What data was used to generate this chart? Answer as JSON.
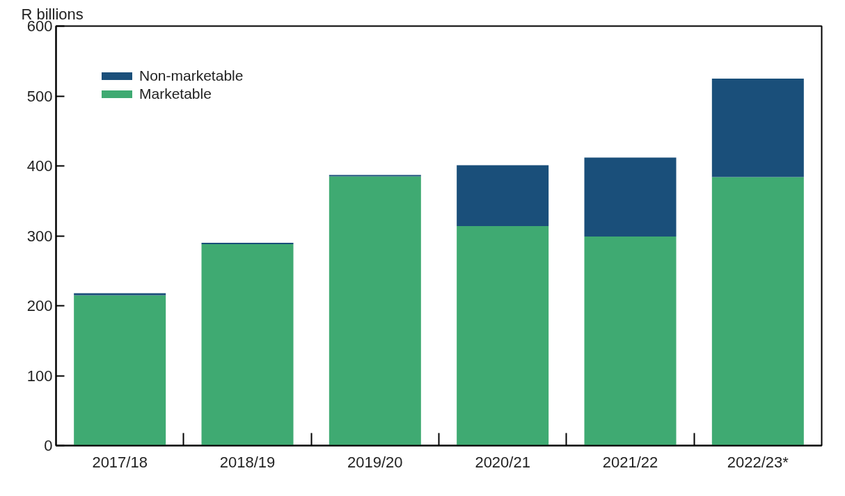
{
  "chart_data": {
    "type": "bar",
    "stacked": true,
    "ylabel": "R billions",
    "categories": [
      "2017/18",
      "2018/19",
      "2019/20",
      "2020/21",
      "2021/22",
      "2022/23*"
    ],
    "series": [
      {
        "name": "Marketable",
        "color": "#3faa72",
        "values": [
          215,
          288,
          385,
          314,
          299,
          384
        ]
      },
      {
        "name": "Non-marketable",
        "color": "#1a4f7a",
        "values": [
          3,
          2,
          2,
          87,
          113,
          141
        ]
      }
    ],
    "ylim": [
      0,
      600
    ],
    "yticks": [
      0,
      100,
      200,
      300,
      400,
      500,
      600
    ],
    "grid": false,
    "legend": "top left"
  }
}
